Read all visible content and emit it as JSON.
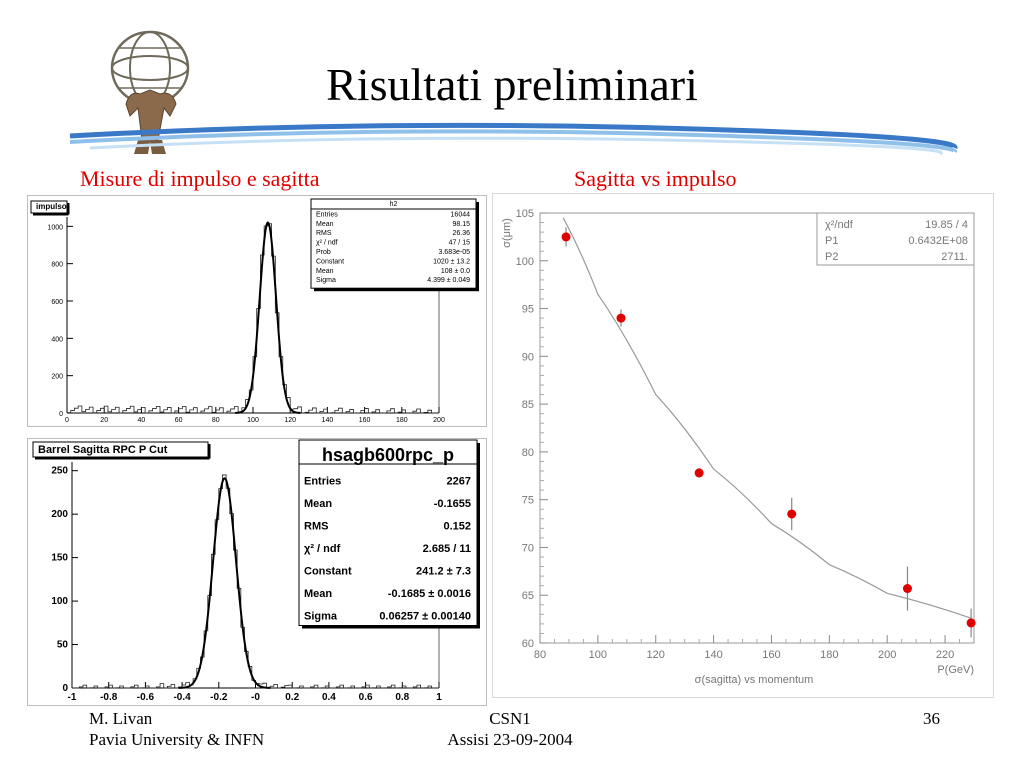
{
  "slide": {
    "title": "Risultati preliminari",
    "left_subtitle": "Misure di impulso e sagitta",
    "right_subtitle": "Sagitta vs impulso",
    "footer": {
      "author": "M. Livan",
      "affiliation": "Pavia University & INFN",
      "event": "CSN1",
      "place_date": "Assisi 23-09-2004",
      "page": "36"
    }
  },
  "chart_data": [
    {
      "type": "histogram",
      "tag": "impulso",
      "stats_title": "h2",
      "xlim": [
        0,
        200
      ],
      "ylim": [
        0,
        1050
      ],
      "xticks": [
        0,
        20,
        40,
        60,
        80,
        100,
        120,
        140,
        160,
        180,
        200
      ],
      "yticks": [
        0,
        200,
        400,
        600,
        800,
        1000
      ],
      "fit": {
        "type": "gaussian",
        "constant": 1020,
        "mean": 108,
        "sigma": 4.399
      },
      "stats": [
        {
          "label": "Entries",
          "value": "16044"
        },
        {
          "label": "Mean",
          "value": "98.15"
        },
        {
          "label": "RMS",
          "value": "26.36"
        },
        {
          "label": "χ² / ndf",
          "value": "47 / 15"
        },
        {
          "label": "Prob",
          "value": "3.683e-05"
        },
        {
          "label": "Constant",
          "value": "1020 ± 13.2"
        },
        {
          "label": "Mean",
          "value": "108 ± 0.0"
        },
        {
          "label": "Sigma",
          "value": "4.399 ± 0.049"
        }
      ]
    },
    {
      "type": "histogram",
      "tag": "Barrel Sagitta RPC P Cut",
      "stats_title": "hsagb600rpc_p",
      "xlim": [
        -1,
        1
      ],
      "ylim": [
        0,
        260
      ],
      "xticks": [
        "-1",
        "-0.8",
        "-0.6",
        "-0.4",
        "-0.2",
        "-0",
        "0.2",
        "0.4",
        "0.6",
        "0.8",
        "1"
      ],
      "yticks": [
        0,
        50,
        100,
        150,
        200,
        250
      ],
      "fit": {
        "type": "gaussian",
        "constant": 241.2,
        "mean": -0.1685,
        "sigma": 0.06257
      },
      "stats": [
        {
          "label": "Entries",
          "value": "2267"
        },
        {
          "label": "Mean",
          "value": "-0.1655"
        },
        {
          "label": "RMS",
          "value": "0.152"
        },
        {
          "label": "χ² / ndf",
          "value": "2.685 / 11"
        },
        {
          "label": "Constant",
          "value": "241.2 ± 7.3"
        },
        {
          "label": "Mean",
          "value": "-0.1685 ± 0.0016"
        },
        {
          "label": "Sigma",
          "value": "0.06257 ± 0.00140"
        }
      ]
    },
    {
      "type": "scatter",
      "title": "σ(sagitta) vs momentum",
      "xlabel": "P(GeV)",
      "ylabel": "σ(μm)",
      "xlim": [
        80,
        230
      ],
      "ylim": [
        60,
        105
      ],
      "xticks": [
        80,
        100,
        120,
        140,
        160,
        180,
        200,
        220
      ],
      "yticks": [
        60,
        65,
        70,
        75,
        80,
        85,
        90,
        95,
        100,
        105
      ],
      "points": [
        {
          "x": 89,
          "y": 102.5,
          "err": 1.0
        },
        {
          "x": 108,
          "y": 94,
          "err": 0.9
        },
        {
          "x": 135,
          "y": 77.8,
          "err": 0.5
        },
        {
          "x": 167,
          "y": 73.5,
          "err": 1.7
        },
        {
          "x": 207,
          "y": 65.7,
          "err": 2.3
        },
        {
          "x": 229,
          "y": 62.1,
          "err": 1.5
        }
      ],
      "point_color": "#e00000",
      "fit": {
        "type": "curve",
        "p1": 64320000,
        "p2": 2711
      },
      "stats": [
        {
          "label": "χ²/ndf",
          "value": "19.85   /   4"
        },
        {
          "label": "P1",
          "value": "0.6432E+08"
        },
        {
          "label": "P2",
          "value": "2711."
        }
      ]
    }
  ]
}
